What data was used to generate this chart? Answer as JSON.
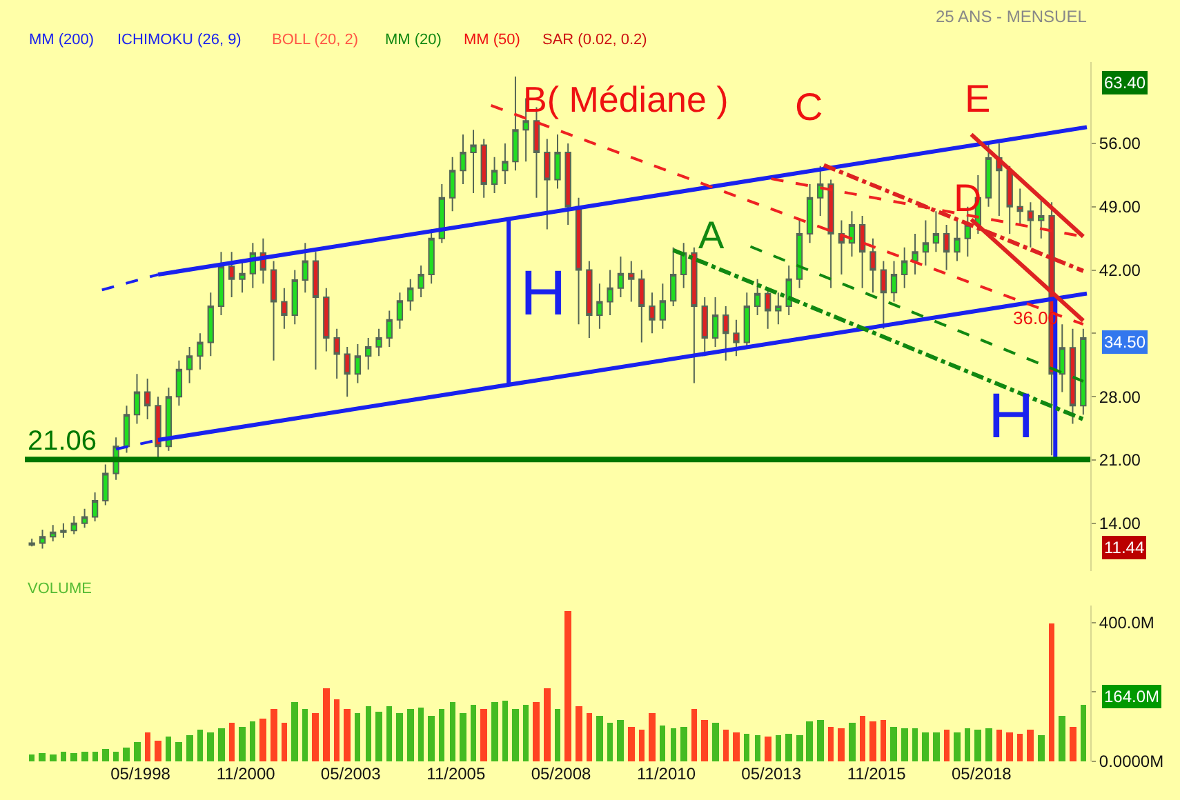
{
  "chart_data": [
    {
      "type": "candlestick",
      "title": "25 ANS - MENSUEL",
      "xlim": [
        "1995-08",
        "2020-12"
      ],
      "ylim": [
        8.7,
        65
      ],
      "yticks": [
        {
          "value": 14,
          "label": "14.00"
        },
        {
          "value": 21,
          "label": "21.00"
        },
        {
          "value": 28,
          "label": "28.00"
        },
        {
          "value": 35,
          "label": null
        },
        {
          "value": 42,
          "label": "42.00"
        },
        {
          "value": 49,
          "label": "49.00"
        },
        {
          "value": 56,
          "label": "56.00"
        }
      ],
      "tick_labels": "y",
      "legend": false,
      "grid": false,
      "x": [
        "1995-10",
        "1996-01",
        "1996-04",
        "1996-07",
        "1996-10",
        "1997-01",
        "1997-04",
        "1997-07",
        "1997-10",
        "1998-01",
        "1998-04",
        "1998-07",
        "1998-10",
        "1999-01",
        "1999-04",
        "1999-07",
        "1999-10",
        "2000-01",
        "2000-04",
        "2000-07",
        "2000-10",
        "2001-01",
        "2001-04",
        "2001-07",
        "2001-10",
        "2002-01",
        "2002-04",
        "2002-07",
        "2002-10",
        "2003-01",
        "2003-04",
        "2003-07",
        "2003-10",
        "2004-01",
        "2004-04",
        "2004-07",
        "2004-10",
        "2005-01",
        "2005-04",
        "2005-07",
        "2005-10",
        "2006-01",
        "2006-04",
        "2006-07",
        "2006-10",
        "2007-01",
        "2007-04",
        "2007-07",
        "2007-10",
        "2008-01",
        "2008-04",
        "2008-07",
        "2008-10",
        "2009-01",
        "2009-04",
        "2009-07",
        "2009-10",
        "2010-01",
        "2010-04",
        "2010-07",
        "2010-10",
        "2011-01",
        "2011-04",
        "2011-07",
        "2011-10",
        "2012-01",
        "2012-04",
        "2012-07",
        "2012-10",
        "2013-01",
        "2013-04",
        "2013-07",
        "2013-10",
        "2014-01",
        "2014-04",
        "2014-07",
        "2014-10",
        "2015-01",
        "2015-04",
        "2015-07",
        "2015-10",
        "2016-01",
        "2016-04",
        "2016-07",
        "2016-10",
        "2017-01",
        "2017-04",
        "2017-07",
        "2017-10",
        "2018-01",
        "2018-04",
        "2018-07",
        "2018-10",
        "2019-01",
        "2019-04",
        "2019-07",
        "2019-10",
        "2020-01",
        "2020-04",
        "2020-07",
        "2020-10"
      ],
      "ohlc": [
        [
          11.6,
          12.3,
          11.44,
          11.8
        ],
        [
          11.8,
          13.3,
          11.2,
          12.5
        ],
        [
          12.5,
          13.8,
          12.0,
          13.0
        ],
        [
          13.0,
          14.0,
          12.4,
          13.2
        ],
        [
          13.2,
          14.8,
          12.8,
          14.0
        ],
        [
          14.0,
          15.6,
          13.5,
          14.7
        ],
        [
          14.7,
          17.4,
          14.2,
          16.5
        ],
        [
          16.5,
          20.5,
          16.0,
          19.5
        ],
        [
          19.5,
          23.5,
          18.8,
          22.5
        ],
        [
          22.5,
          27.0,
          21.8,
          26.0
        ],
        [
          26.0,
          30.5,
          25.0,
          28.5
        ],
        [
          28.5,
          30.0,
          25.5,
          27.0
        ],
        [
          27.0,
          28.0,
          21.2,
          22.5
        ],
        [
          22.5,
          29.0,
          22.0,
          28.0
        ],
        [
          28.0,
          32.0,
          27.0,
          31.0
        ],
        [
          31.0,
          33.5,
          29.5,
          32.5
        ],
        [
          32.5,
          35.0,
          31.0,
          34.0
        ],
        [
          34.0,
          39.5,
          32.5,
          38.0
        ],
        [
          38.0,
          44.0,
          37.0,
          42.4
        ],
        [
          42.4,
          44.0,
          39.0,
          41.0
        ],
        [
          41.0,
          43.0,
          39.5,
          41.6
        ],
        [
          41.6,
          45.0,
          40.0,
          43.9
        ],
        [
          43.9,
          45.5,
          40.5,
          42.0
        ],
        [
          42.0,
          43.0,
          32.0,
          38.5
        ],
        [
          38.5,
          40.0,
          35.5,
          37.0
        ],
        [
          37.0,
          42.0,
          36.0,
          40.9
        ],
        [
          40.9,
          45.0,
          39.5,
          43.0
        ],
        [
          43.0,
          44.0,
          31.0,
          39.0
        ],
        [
          39.0,
          40.0,
          33.0,
          34.5
        ],
        [
          34.5,
          35.5,
          30.0,
          32.7
        ],
        [
          32.7,
          33.5,
          28.0,
          30.5
        ],
        [
          30.5,
          33.8,
          29.5,
          32.5
        ],
        [
          32.5,
          34.5,
          31.0,
          33.5
        ],
        [
          33.5,
          35.5,
          32.5,
          34.5
        ],
        [
          34.5,
          37.5,
          33.5,
          36.5
        ],
        [
          36.5,
          39.5,
          35.5,
          38.6
        ],
        [
          38.6,
          41.0,
          37.5,
          40.0
        ],
        [
          40.0,
          42.5,
          39.0,
          41.5
        ],
        [
          41.5,
          46.5,
          40.5,
          45.5
        ],
        [
          45.5,
          51.5,
          45.0,
          50.0
        ],
        [
          50.0,
          54.5,
          48.5,
          53.0
        ],
        [
          53.0,
          57.0,
          51.5,
          55.0
        ],
        [
          55.0,
          57.5,
          50.5,
          55.8
        ],
        [
          55.8,
          56.5,
          50.0,
          51.5
        ],
        [
          51.5,
          54.5,
          50.5,
          53.0
        ],
        [
          53.0,
          56.0,
          51.5,
          54.0
        ],
        [
          54.0,
          63.4,
          53.0,
          57.5
        ],
        [
          57.5,
          61.0,
          54.0,
          58.5
        ],
        [
          58.5,
          60.0,
          50.0,
          55.0
        ],
        [
          55.0,
          56.5,
          46.5,
          52.0
        ],
        [
          52.0,
          57.0,
          51.0,
          55.0
        ],
        [
          55.0,
          56.0,
          47.0,
          49.0
        ],
        [
          49.0,
          50.0,
          36.0,
          42.0
        ],
        [
          42.0,
          43.0,
          34.5,
          37.0
        ],
        [
          37.0,
          40.5,
          35.5,
          38.5
        ],
        [
          38.5,
          42.0,
          37.0,
          40.0
        ],
        [
          40.0,
          43.5,
          39.0,
          41.6
        ],
        [
          41.6,
          43.0,
          38.5,
          41.0
        ],
        [
          41.0,
          42.0,
          34.0,
          38.0
        ],
        [
          38.0,
          39.5,
          35.0,
          36.5
        ],
        [
          36.5,
          40.5,
          35.5,
          38.6
        ],
        [
          38.6,
          44.5,
          38.0,
          41.5
        ],
        [
          41.5,
          45.0,
          40.0,
          43.9
        ],
        [
          43.9,
          44.5,
          29.5,
          38.0
        ],
        [
          38.0,
          39.0,
          32.5,
          34.5
        ],
        [
          34.5,
          39.0,
          33.5,
          37.0
        ],
        [
          37.0,
          38.0,
          32.0,
          35.0
        ],
        [
          35.0,
          36.5,
          32.5,
          34.0
        ],
        [
          34.0,
          39.5,
          33.5,
          38.0
        ],
        [
          38.0,
          41.0,
          37.0,
          39.4
        ],
        [
          39.4,
          40.0,
          35.5,
          37.5
        ],
        [
          37.5,
          39.5,
          36.0,
          38.0
        ],
        [
          38.0,
          42.5,
          37.0,
          41.0
        ],
        [
          41.0,
          47.5,
          40.0,
          46.0
        ],
        [
          46.0,
          51.5,
          45.0,
          50.0
        ],
        [
          50.0,
          53.5,
          48.0,
          51.5
        ],
        [
          51.5,
          52.0,
          40.0,
          46.0
        ],
        [
          46.0,
          47.5,
          41.5,
          45.0
        ],
        [
          45.0,
          48.5,
          43.5,
          47.0
        ],
        [
          47.0,
          48.0,
          40.0,
          44.0
        ],
        [
          44.0,
          45.5,
          39.5,
          42.0
        ],
        [
          42.0,
          43.0,
          35.5,
          39.5
        ],
        [
          39.5,
          43.0,
          38.5,
          41.5
        ],
        [
          41.5,
          44.5,
          40.0,
          43.0
        ],
        [
          43.0,
          46.0,
          41.5,
          44.0
        ],
        [
          44.0,
          47.5,
          42.5,
          45.0
        ],
        [
          45.0,
          48.5,
          44.0,
          46.0
        ],
        [
          46.0,
          47.0,
          42.0,
          44.0
        ],
        [
          44.0,
          47.5,
          43.0,
          45.5
        ],
        [
          45.5,
          49.0,
          43.5,
          47.0
        ],
        [
          47.0,
          52.5,
          46.0,
          50.0
        ],
        [
          50.0,
          56.0,
          49.0,
          54.4
        ],
        [
          54.4,
          56.0,
          48.0,
          53.0
        ],
        [
          53.0,
          53.5,
          46.0,
          49.0
        ],
        [
          49.0,
          51.0,
          47.0,
          48.5
        ],
        [
          48.5,
          49.5,
          44.5,
          47.5
        ],
        [
          47.5,
          50.0,
          45.5,
          48.0
        ],
        [
          48.0,
          49.5,
          21.5,
          30.5
        ],
        [
          30.5,
          36.0,
          28.5,
          33.4
        ],
        [
          33.4,
          35.5,
          25.0,
          27.0
        ],
        [
          27.0,
          35.5,
          26.0,
          34.5
        ]
      ],
      "series": [
        {
          "type": "line",
          "x": [
            "1998-10",
            "2020-11"
          ],
          "values": [
            41.5,
            57.8
          ],
          "color": "#1a22ee",
          "line_style": "solid"
        },
        {
          "type": "line",
          "x": [
            "1998-10",
            "2020-11"
          ],
          "values": [
            23.2,
            39.4
          ],
          "color": "#1a22ee",
          "line_style": "solid"
        },
        {
          "type": "line",
          "x": [
            "1997-06",
            "1998-10"
          ],
          "values": [
            39.8,
            41.5
          ],
          "color": "#1a22ee",
          "line_style": "dotted"
        },
        {
          "type": "line",
          "x": [
            "1997-10",
            "1998-10"
          ],
          "values": [
            22.2,
            23.2
          ],
          "color": "#1a22ee",
          "line_style": "dotted"
        },
        {
          "type": "line",
          "x": [
            "2007-02",
            "2007-02"
          ],
          "values": [
            29.4,
            47.6
          ],
          "color": "#1a22ee",
          "line_style": "solid"
        },
        {
          "type": "line",
          "x": [
            "2020-02",
            "2020-02"
          ],
          "values": [
            21.0,
            39.0
          ],
          "color": "#1a22ee",
          "line_style": "solid"
        },
        {
          "type": "line",
          "x": [
            "2006-09",
            "2020-10"
          ],
          "values": [
            60.2,
            36.0
          ],
          "color": "#ee2222",
          "line_style": "dotted"
        },
        {
          "type": "line",
          "x": [
            "2013-05",
            "2020-10"
          ],
          "values": [
            52.1,
            45.7
          ],
          "color": "#ee2222",
          "line_style": "dotted"
        },
        {
          "type": "line",
          "x": [
            "2014-08",
            "2020-10"
          ],
          "values": [
            53.6,
            41.9
          ],
          "color": "#dd2222",
          "line_style": "dashed"
        },
        {
          "type": "line",
          "x": [
            "2018-02",
            "2020-10"
          ],
          "values": [
            57.0,
            45.7
          ],
          "color": "#dd2222",
          "line_style": "solid"
        },
        {
          "type": "line",
          "x": [
            "2018-02",
            "2020-10"
          ],
          "values": [
            47.6,
            36.4
          ],
          "color": "#dd2222",
          "line_style": "solid"
        },
        {
          "type": "line",
          "x": [
            "2011-01",
            "2020-10"
          ],
          "values": [
            44.2,
            25.5
          ],
          "color": "#118811",
          "line_style": "dashed"
        },
        {
          "type": "line",
          "x": [
            "2012-11",
            "2020-10"
          ],
          "values": [
            44.6,
            29.7
          ],
          "color": "#118811",
          "line_style": "dotted"
        }
      ],
      "ref_lines": [
        {
          "axis": "y",
          "value": 21.06,
          "label": "21.06",
          "color": "#007700"
        }
      ],
      "annotations": [
        "MM (200)",
        "ICHIMOKU (26, 9)",
        "BOLL (20, 2)",
        "MM (20)",
        "MM (50)",
        "SAR (0.02, 0.2)",
        "B( Médiane )",
        "C",
        "E",
        "D",
        "A",
        "H",
        "H",
        "36.00",
        "63.40",
        "34.50",
        "11.44"
      ]
    },
    {
      "type": "bar",
      "title": "VOLUME",
      "xlim": [
        "1995-08",
        "2020-12"
      ],
      "xticks": [
        {
          "value": "1998-05",
          "label": "05/1998"
        },
        {
          "value": "2000-11",
          "label": "11/2000"
        },
        {
          "value": "2003-05",
          "label": "05/2003"
        },
        {
          "value": "2005-11",
          "label": "11/2005"
        },
        {
          "value": "2008-05",
          "label": "05/2008"
        },
        {
          "value": "2010-11",
          "label": "11/2010"
        },
        {
          "value": "2013-05",
          "label": "05/2013"
        },
        {
          "value": "2015-11",
          "label": "11/2015"
        },
        {
          "value": "2018-05",
          "label": "05/2018"
        }
      ],
      "ylim": [
        0,
        450
      ],
      "yticks": [
        {
          "value": 0,
          "label": "0.0000M"
        },
        {
          "value": 200,
          "label": null
        },
        {
          "value": 400,
          "label": "400.0M"
        }
      ],
      "legend": false,
      "grid": false,
      "x": [
        "1995-10",
        "1996-01",
        "1996-04",
        "1996-07",
        "1996-10",
        "1997-01",
        "1997-04",
        "1997-07",
        "1997-10",
        "1998-01",
        "1998-04",
        "1998-07",
        "1998-10",
        "1999-01",
        "1999-04",
        "1999-07",
        "1999-10",
        "2000-01",
        "2000-04",
        "2000-07",
        "2000-10",
        "2001-01",
        "2001-04",
        "2001-07",
        "2001-10",
        "2002-01",
        "2002-04",
        "2002-07",
        "2002-10",
        "2003-01",
        "2003-04",
        "2003-07",
        "2003-10",
        "2004-01",
        "2004-04",
        "2004-07",
        "2004-10",
        "2005-01",
        "2005-04",
        "2005-07",
        "2005-10",
        "2006-01",
        "2006-04",
        "2006-07",
        "2006-10",
        "2007-01",
        "2007-04",
        "2007-07",
        "2007-10",
        "2008-01",
        "2008-04",
        "2008-07",
        "2008-10",
        "2009-01",
        "2009-04",
        "2009-07",
        "2009-10",
        "2010-01",
        "2010-04",
        "2010-07",
        "2010-10",
        "2011-01",
        "2011-04",
        "2011-07",
        "2011-10",
        "2012-01",
        "2012-04",
        "2012-07",
        "2012-10",
        "2013-01",
        "2013-04",
        "2013-07",
        "2013-10",
        "2014-01",
        "2014-04",
        "2014-07",
        "2014-10",
        "2015-01",
        "2015-04",
        "2015-07",
        "2015-10",
        "2016-01",
        "2016-04",
        "2016-07",
        "2016-10",
        "2017-01",
        "2017-04",
        "2017-07",
        "2017-10",
        "2018-01",
        "2018-04",
        "2018-07",
        "2018-10",
        "2019-01",
        "2019-04",
        "2019-07",
        "2019-10",
        "2020-01",
        "2020-04",
        "2020-07",
        "2020-10"
      ],
      "values": [
        20,
        25,
        22,
        28,
        25,
        30,
        28,
        35,
        30,
        40,
        55,
        85,
        60,
        70,
        55,
        75,
        90,
        85,
        95,
        110,
        100,
        115,
        125,
        150,
        110,
        170,
        150,
        140,
        210,
        180,
        150,
        140,
        160,
        145,
        160,
        140,
        150,
        155,
        130,
        150,
        170,
        140,
        165,
        150,
        170,
        175,
        150,
        165,
        170,
        210,
        150,
        435,
        160,
        140,
        130,
        110,
        120,
        100,
        90,
        140,
        105,
        95,
        100,
        150,
        120,
        110,
        90,
        85,
        80,
        75,
        70,
        75,
        80,
        75,
        115,
        120,
        100,
        95,
        110,
        130,
        115,
        120,
        100,
        95,
        95,
        85,
        85,
        90,
        85,
        95,
        90,
        95,
        90,
        85,
        80,
        90,
        75,
        400,
        130,
        100,
        164
      ],
      "colors": [
        "#44bb22",
        "#44bb22",
        "#44bb22",
        "#44bb22",
        "#44bb22",
        "#44bb22",
        "#44bb22",
        "#44bb22",
        "#44bb22",
        "#44bb22",
        "#44bb22",
        "#ff4422",
        "#ff4422",
        "#44bb22",
        "#44bb22",
        "#44bb22",
        "#44bb22",
        "#44bb22",
        "#44bb22",
        "#ff4422",
        "#44bb22",
        "#44bb22",
        "#ff4422",
        "#ff4422",
        "#ff4422",
        "#44bb22",
        "#44bb22",
        "#ff4422",
        "#ff4422",
        "#ff4422",
        "#ff4422",
        "#44bb22",
        "#44bb22",
        "#44bb22",
        "#44bb22",
        "#44bb22",
        "#44bb22",
        "#44bb22",
        "#44bb22",
        "#44bb22",
        "#44bb22",
        "#44bb22",
        "#44bb22",
        "#ff4422",
        "#44bb22",
        "#44bb22",
        "#44bb22",
        "#44bb22",
        "#ff4422",
        "#ff4422",
        "#44bb22",
        "#ff4422",
        "#ff4422",
        "#ff4422",
        "#44bb22",
        "#44bb22",
        "#44bb22",
        "#ff4422",
        "#ff4422",
        "#ff4422",
        "#44bb22",
        "#44bb22",
        "#44bb22",
        "#ff4422",
        "#ff4422",
        "#44bb22",
        "#ff4422",
        "#ff4422",
        "#44bb22",
        "#44bb22",
        "#ff4422",
        "#44bb22",
        "#44bb22",
        "#44bb22",
        "#44bb22",
        "#44bb22",
        "#ff4422",
        "#ff4422",
        "#44bb22",
        "#ff4422",
        "#ff4422",
        "#ff4422",
        "#44bb22",
        "#44bb22",
        "#44bb22",
        "#44bb22",
        "#44bb22",
        "#ff4422",
        "#44bb22",
        "#44bb22",
        "#44bb22",
        "#44bb22",
        "#ff4422",
        "#ff4422",
        "#ff4422",
        "#ff4422",
        "#44bb22",
        "#ff4422",
        "#44bb22",
        "#ff4422",
        "#44bb22"
      ],
      "annotations": [
        "164.0M"
      ]
    }
  ]
}
